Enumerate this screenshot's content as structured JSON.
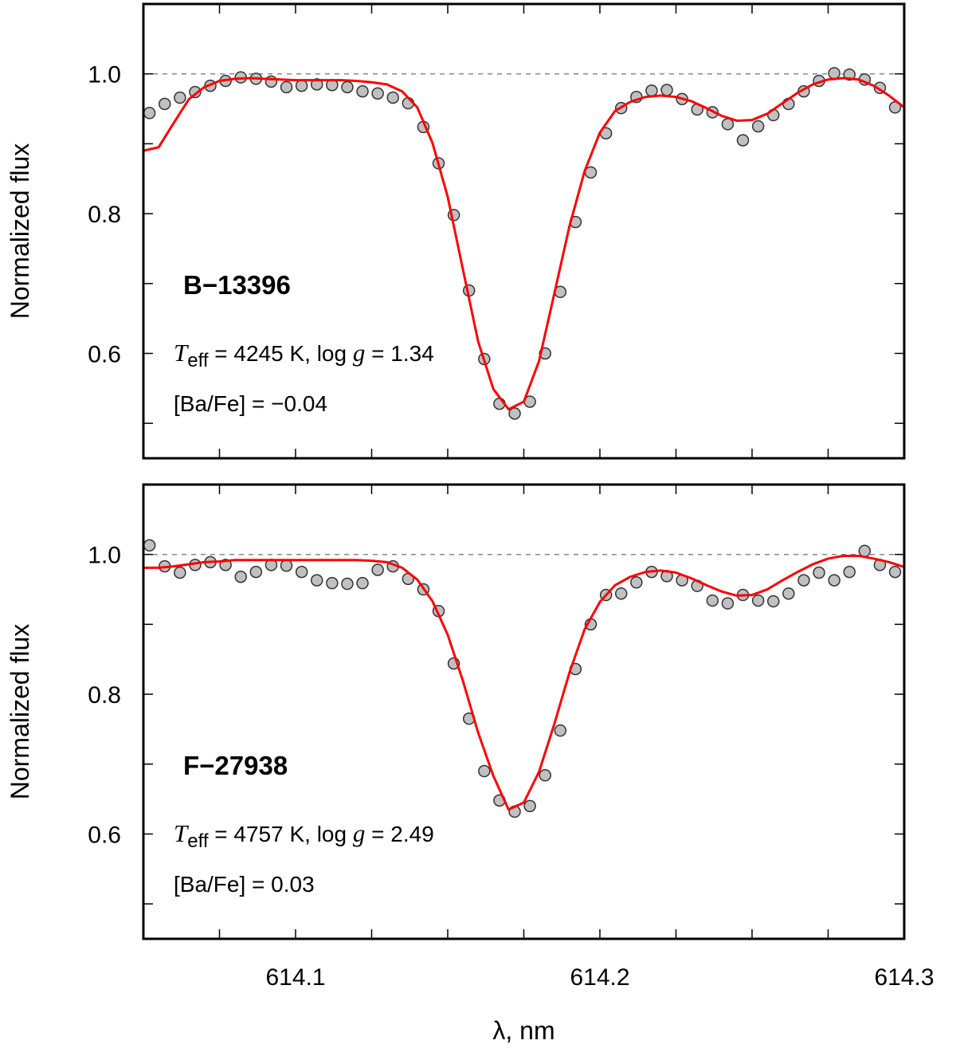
{
  "chart_data": [
    {
      "type": "line",
      "ylabel": "Normalized flux",
      "xlim": [
        614.05,
        614.3
      ],
      "ylim": [
        0.45,
        1.1
      ],
      "xminor": [
        614.075,
        614.1,
        614.125,
        614.15,
        614.175,
        614.2,
        614.225,
        614.25,
        614.275
      ],
      "yticks": [
        0.6,
        0.8,
        {
          "value": 1,
          "label": "1.0"
        }
      ],
      "yminor": [
        0.5,
        0.7,
        0.9
      ],
      "hline": 1,
      "annotations": {
        "title": "B−13396",
        "params": [
          {
            "text": "T",
            "style": "italic"
          },
          {
            "text": "eff",
            "style": "sub"
          },
          {
            "text": " = 4245 K, log ",
            "style": "normal"
          },
          {
            "text": "g",
            "style": "italic"
          },
          {
            "text": " = 1.34",
            "style": "normal"
          }
        ],
        "abundance": "[Ba/Fe] = −0.04"
      },
      "series": [
        {
          "marker": "circle",
          "color": "#c0c0c0",
          "x": [
            614.052,
            614.057,
            614.062,
            614.067,
            614.072,
            614.077,
            614.082,
            614.087,
            614.092,
            614.097,
            614.102,
            614.107,
            614.112,
            614.117,
            614.122,
            614.127,
            614.132,
            614.137,
            614.142,
            614.147,
            614.152,
            614.157,
            614.162,
            614.167,
            614.172,
            614.177,
            614.182,
            614.187,
            614.192,
            614.197,
            614.202,
            614.207,
            614.212,
            614.217,
            614.222,
            614.227,
            614.232,
            614.237,
            614.242,
            614.247,
            614.252,
            614.257,
            614.262,
            614.267,
            614.272,
            614.277,
            614.282,
            614.287,
            614.292,
            614.297
          ],
          "values": [
            0.944,
            0.957,
            0.966,
            0.974,
            0.983,
            0.99,
            0.995,
            0.993,
            0.989,
            0.981,
            0.983,
            0.985,
            0.984,
            0.981,
            0.975,
            0.972,
            0.966,
            0.958,
            0.924,
            0.872,
            0.798,
            0.69,
            0.592,
            0.528,
            0.514,
            0.531,
            0.6,
            0.688,
            0.788,
            0.859,
            0.915,
            0.951,
            0.967,
            0.976,
            0.977,
            0.964,
            0.949,
            0.945,
            0.928,
            0.905,
            0.925,
            0.941,
            0.957,
            0.975,
            0.99,
            1.001,
            0.999,
            0.992,
            0.98,
            0.952
          ]
        },
        {
          "marker": "none",
          "color": "#ff0000",
          "x": [
            614.05,
            614.055,
            614.06,
            614.065,
            614.07,
            614.075,
            614.08,
            614.085,
            614.09,
            614.095,
            614.1,
            614.105,
            614.11,
            614.115,
            614.12,
            614.125,
            614.13,
            614.135,
            614.14,
            614.145,
            614.15,
            614.155,
            614.16,
            614.165,
            614.17,
            614.175,
            614.18,
            614.185,
            614.19,
            614.195,
            614.2,
            614.205,
            614.21,
            614.215,
            614.22,
            614.225,
            614.23,
            614.235,
            614.24,
            614.245,
            614.25,
            614.255,
            614.26,
            614.265,
            614.27,
            614.275,
            614.28,
            614.285,
            614.29,
            614.295,
            614.3
          ],
          "values": [
            0.89,
            0.895,
            0.93,
            0.964,
            0.981,
            0.99,
            0.993,
            0.994,
            0.993,
            0.992,
            0.991,
            0.991,
            0.991,
            0.991,
            0.99,
            0.988,
            0.985,
            0.975,
            0.952,
            0.901,
            0.824,
            0.72,
            0.617,
            0.549,
            0.52,
            0.531,
            0.589,
            0.685,
            0.782,
            0.861,
            0.916,
            0.947,
            0.96,
            0.967,
            0.969,
            0.967,
            0.961,
            0.951,
            0.94,
            0.933,
            0.934,
            0.943,
            0.958,
            0.973,
            0.985,
            0.992,
            0.994,
            0.992,
            0.983,
            0.969,
            0.952
          ]
        }
      ]
    },
    {
      "type": "line",
      "ylabel": "Normalized flux",
      "xlabel": "λ, nm",
      "xlim": [
        614.05,
        614.3
      ],
      "ylim": [
        0.45,
        1.1
      ],
      "xticks": [
        614.1,
        614.2,
        614.3
      ],
      "xminor": [
        614.075,
        614.125,
        614.15,
        614.175,
        614.225,
        614.25,
        614.275
      ],
      "yticks": [
        0.6,
        0.8,
        {
          "value": 1,
          "label": "1.0"
        }
      ],
      "yminor": [
        0.5,
        0.7,
        0.9
      ],
      "hline": 1,
      "annotations": {
        "title": "F−27938",
        "params": [
          {
            "text": "T",
            "style": "italic"
          },
          {
            "text": "eff",
            "style": "sub"
          },
          {
            "text": " = 4757 K, log ",
            "style": "normal"
          },
          {
            "text": "g",
            "style": "italic"
          },
          {
            "text": " = 2.49",
            "style": "normal"
          }
        ],
        "abundance": "[Ba/Fe] = 0.03"
      },
      "series": [
        {
          "marker": "circle",
          "color": "#c0c0c0",
          "x": [
            614.052,
            614.057,
            614.062,
            614.067,
            614.072,
            614.077,
            614.082,
            614.087,
            614.092,
            614.097,
            614.102,
            614.107,
            614.112,
            614.117,
            614.122,
            614.127,
            614.132,
            614.137,
            614.142,
            614.147,
            614.152,
            614.157,
            614.162,
            614.167,
            614.172,
            614.177,
            614.182,
            614.187,
            614.192,
            614.197,
            614.202,
            614.207,
            614.212,
            614.217,
            614.222,
            614.227,
            614.232,
            614.237,
            614.242,
            614.247,
            614.252,
            614.257,
            614.262,
            614.267,
            614.272,
            614.277,
            614.282,
            614.287,
            614.292,
            614.297
          ],
          "values": [
            1.013,
            0.983,
            0.974,
            0.985,
            0.989,
            0.985,
            0.968,
            0.975,
            0.985,
            0.984,
            0.975,
            0.963,
            0.959,
            0.958,
            0.959,
            0.978,
            0.983,
            0.965,
            0.95,
            0.919,
            0.844,
            0.765,
            0.69,
            0.648,
            0.632,
            0.64,
            0.684,
            0.748,
            0.836,
            0.9,
            0.942,
            0.944,
            0.96,
            0.975,
            0.969,
            0.963,
            0.955,
            0.934,
            0.93,
            0.942,
            0.934,
            0.933,
            0.944,
            0.963,
            0.974,
            0.963,
            0.975,
            1.005,
            0.985,
            0.975
          ]
        },
        {
          "marker": "none",
          "color": "#ff0000",
          "x": [
            614.05,
            614.055,
            614.06,
            614.065,
            614.07,
            614.075,
            614.08,
            614.085,
            614.09,
            614.095,
            614.1,
            614.105,
            614.11,
            614.115,
            614.12,
            614.125,
            614.13,
            614.135,
            614.14,
            614.145,
            614.15,
            614.155,
            614.16,
            614.165,
            614.17,
            614.175,
            614.18,
            614.185,
            614.19,
            614.195,
            614.2,
            614.205,
            614.21,
            614.215,
            614.22,
            614.225,
            614.23,
            614.235,
            614.24,
            614.245,
            614.25,
            614.255,
            614.26,
            614.265,
            614.27,
            614.275,
            614.28,
            614.285,
            614.29,
            614.295,
            614.3
          ],
          "values": [
            0.981,
            0.981,
            0.983,
            0.986,
            0.989,
            0.99,
            0.992,
            0.992,
            0.992,
            0.992,
            0.992,
            0.992,
            0.992,
            0.992,
            0.992,
            0.991,
            0.989,
            0.981,
            0.964,
            0.933,
            0.885,
            0.819,
            0.745,
            0.683,
            0.635,
            0.645,
            0.689,
            0.757,
            0.831,
            0.893,
            0.932,
            0.956,
            0.968,
            0.975,
            0.977,
            0.974,
            0.966,
            0.956,
            0.947,
            0.941,
            0.942,
            0.95,
            0.963,
            0.975,
            0.986,
            0.994,
            0.998,
            0.998,
            0.994,
            0.989,
            0.982
          ]
        }
      ]
    }
  ]
}
